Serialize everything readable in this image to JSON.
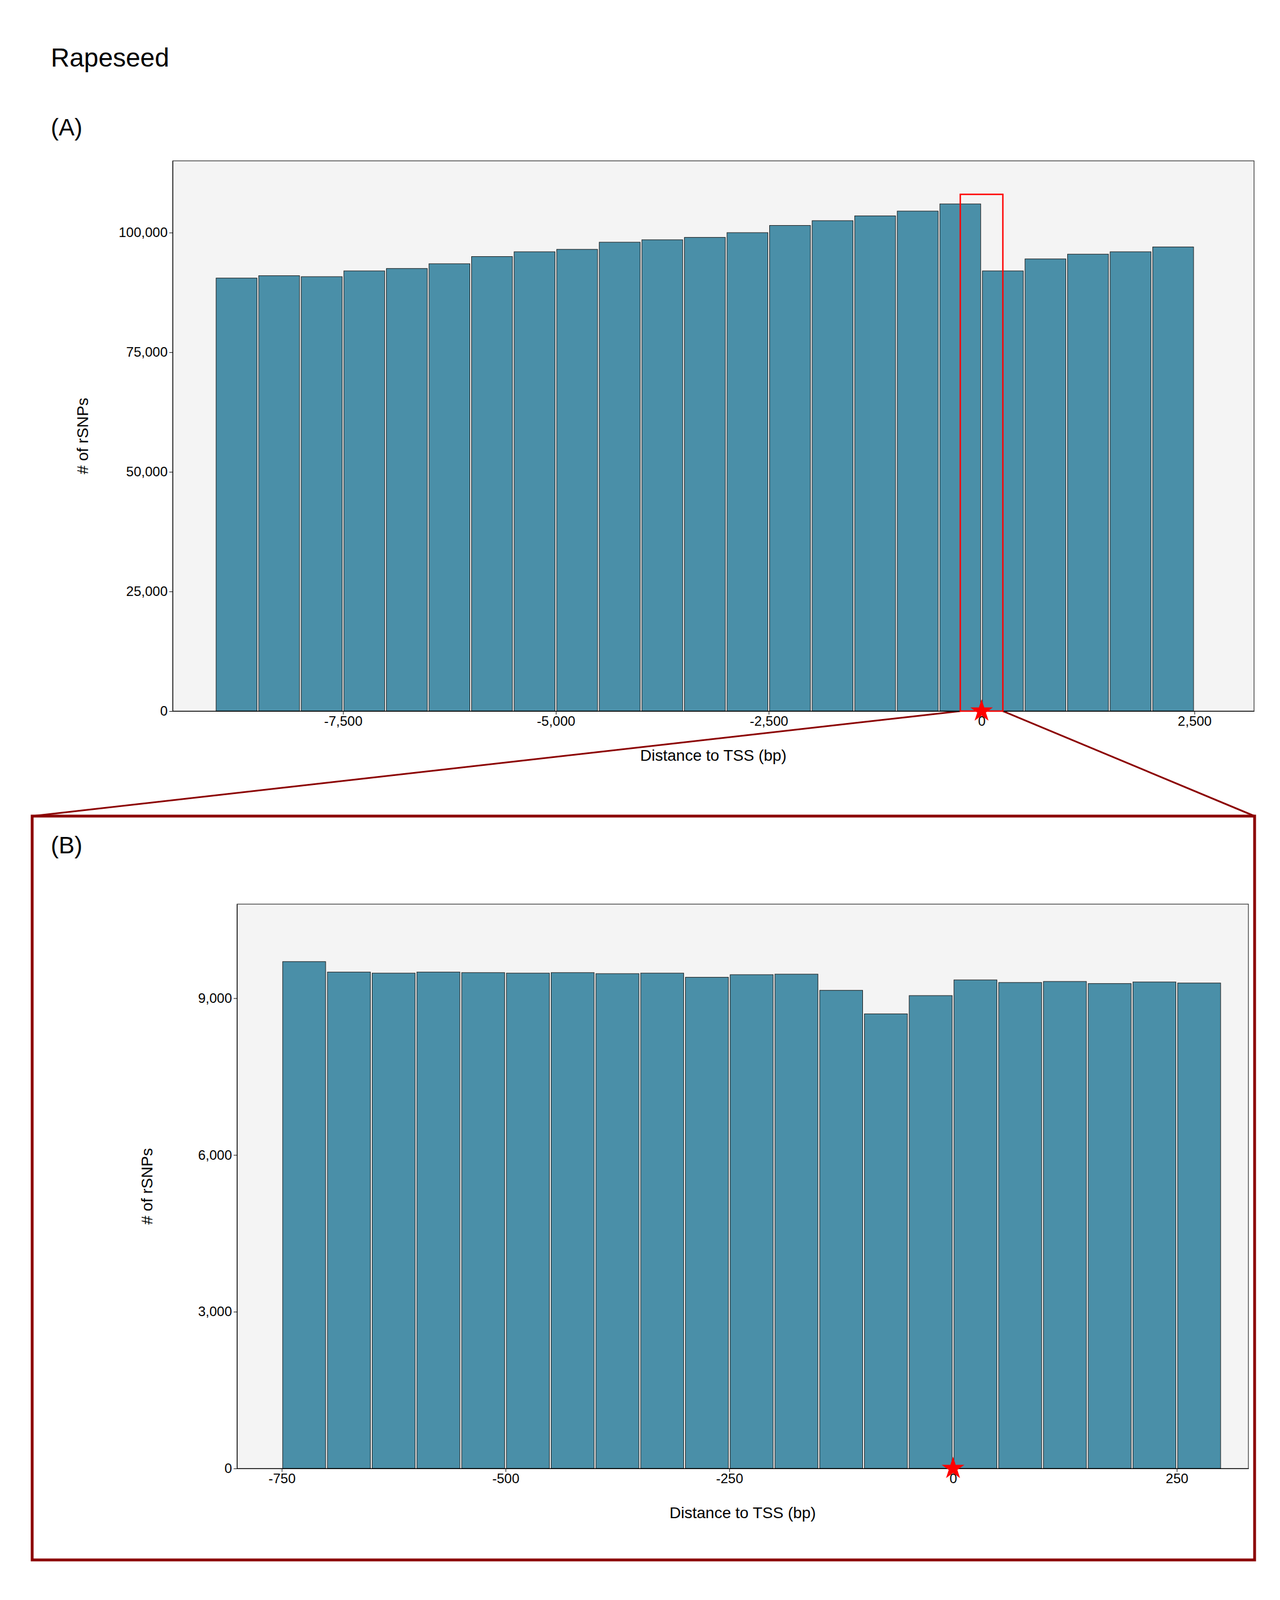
{
  "chart_data": [
    {
      "type": "bar",
      "title": "Rapeseed",
      "subtitle": "(A)",
      "x": [
        -8750,
        -8250,
        -7750,
        -7250,
        -6750,
        -6250,
        -5750,
        -5250,
        -4750,
        -4250,
        -3750,
        -3250,
        -2750,
        -2250,
        -1750,
        -1250,
        -750,
        -250,
        250,
        750,
        1250,
        1750,
        2250
      ],
      "values": [
        90500,
        91000,
        90800,
        92000,
        92500,
        93500,
        95000,
        96000,
        96500,
        98000,
        98500,
        99000,
        100000,
        101500,
        102500,
        103500,
        104500,
        106000,
        92000,
        94500,
        95500,
        96000,
        97000
      ],
      "color": "#4a8fa8",
      "xlabel": "Distance to TSS (bp)",
      "ylabel": "# of rSNPs",
      "xlim": [
        -9500,
        3200
      ],
      "ylim": [
        0,
        115000
      ],
      "xticks": [
        {
          "value": -7500,
          "label": "-7,500"
        },
        {
          "value": -5000,
          "label": "-5,000"
        },
        {
          "value": -2500,
          "label": "-2,500"
        },
        0,
        {
          "value": 2500,
          "label": "2,500"
        }
      ],
      "yticks": [
        0,
        {
          "value": 25000,
          "label": "25,000"
        },
        {
          "value": 50000,
          "label": "50,000"
        },
        {
          "value": 75000,
          "label": "75,000"
        },
        {
          "value": 100000,
          "label": "100,000"
        }
      ],
      "grid": false,
      "tss_marker": {
        "x": 0,
        "y": 0
      },
      "zoom_box": {
        "xlim": [
          -250,
          250
        ],
        "ylim": [
          0,
          108000
        ]
      }
    },
    {
      "type": "bar",
      "subtitle": "(B)",
      "x": [
        -725,
        -675,
        -625,
        -575,
        -525,
        -475,
        -425,
        -375,
        -325,
        -275,
        -225,
        -175,
        -125,
        -75,
        -25,
        25,
        75,
        125,
        175,
        225,
        275
      ],
      "values": [
        9700,
        9500,
        9480,
        9500,
        9490,
        9480,
        9490,
        9470,
        9480,
        9400,
        9450,
        9460,
        9150,
        8700,
        9050,
        9350,
        9300,
        9320,
        9280,
        9310,
        9290
      ],
      "color": "#4a8fa8",
      "xlabel": "Distance to TSS (bp)",
      "ylabel": "# of rSNPs",
      "xlim": [
        -800,
        330
      ],
      "ylim": [
        0,
        10800
      ],
      "xticks": [
        -750,
        -500,
        -250,
        0,
        250
      ],
      "yticks": [
        0,
        {
          "value": 3000,
          "label": "3,000"
        },
        {
          "value": 6000,
          "label": "6,000"
        },
        {
          "value": 9000,
          "label": "9,000"
        }
      ],
      "grid": false,
      "tss_marker": {
        "x": 0,
        "y": 0
      }
    }
  ]
}
